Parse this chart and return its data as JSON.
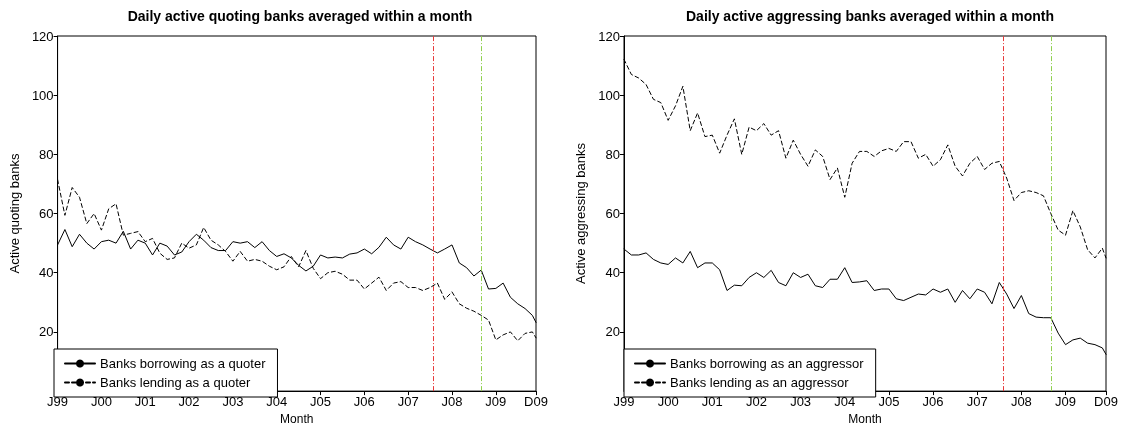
{
  "chart_data": [
    {
      "type": "line",
      "title": "Daily active quoting banks averaged within a month",
      "xlabel": "Month",
      "ylabel": "Active quoting banks",
      "x": [
        "1999-01",
        "1999-03",
        "1999-05",
        "1999-07",
        "1999-09",
        "1999-11",
        "2000-01",
        "2000-03",
        "2000-05",
        "2000-07",
        "2000-09",
        "2000-11",
        "2001-01",
        "2001-03",
        "2001-05",
        "2001-07",
        "2001-09",
        "2001-11",
        "2002-01",
        "2002-03",
        "2002-05",
        "2002-07",
        "2002-09",
        "2002-11",
        "2003-01",
        "2003-03",
        "2003-05",
        "2003-07",
        "2003-09",
        "2003-11",
        "2004-01",
        "2004-03",
        "2004-05",
        "2004-07",
        "2004-09",
        "2004-11",
        "2005-01",
        "2005-03",
        "2005-05",
        "2005-07",
        "2005-09",
        "2005-11",
        "2006-01",
        "2006-03",
        "2006-05",
        "2006-07",
        "2006-09",
        "2006-11",
        "2007-01",
        "2007-03",
        "2007-05",
        "2007-07",
        "2007-09",
        "2007-11",
        "2008-01",
        "2008-03",
        "2008-05",
        "2008-07",
        "2008-09",
        "2008-11",
        "2009-01",
        "2009-03",
        "2009-05",
        "2009-07",
        "2009-09",
        "2009-11",
        "2009-12"
      ],
      "series": [
        {
          "name": "Banks borrowing as a quoter",
          "color": "#000000",
          "line_style": "solid",
          "values": [
            49.4,
            54.6,
            48.8,
            53,
            50,
            48,
            50.5,
            51,
            50,
            54,
            48,
            51,
            50,
            46,
            50,
            49,
            46,
            47,
            50.5,
            53,
            51,
            48.5,
            47.5,
            47.5,
            50.5,
            50,
            50.5,
            48.5,
            50.5,
            47.5,
            45.5,
            46.4,
            45,
            42.5,
            40.6,
            42.2,
            46,
            45,
            45.3,
            45,
            46.3,
            46.7,
            48,
            46.4,
            48.6,
            52,
            49.4,
            48,
            52,
            50.5,
            49.4,
            48,
            46.7,
            48,
            49.4,
            43.3,
            41.7,
            38.9,
            40.9,
            34.5,
            34.7,
            36.5,
            31.7,
            29.5,
            27.9,
            25.6,
            23.2
          ]
        },
        {
          "name": "Banks lending as a quoter",
          "color": "#000000",
          "line_style": "dashed",
          "values": [
            71.5,
            59.4,
            68.8,
            65.5,
            56.6,
            60,
            54.4,
            61.6,
            63.3,
            52.7,
            53.3,
            53.9,
            50.5,
            51.6,
            46.6,
            44.5,
            45,
            50,
            48.3,
            49.4,
            55.3,
            51,
            49.4,
            47.2,
            43.9,
            47.2,
            43.9,
            44.5,
            43.9,
            42.2,
            41,
            42,
            45.5,
            42,
            47.5,
            41.5,
            38,
            40,
            40.5,
            39.5,
            37.5,
            37.5,
            34.5,
            36.5,
            38.5,
            34,
            36.5,
            37,
            35,
            35,
            34,
            35,
            36.5,
            31,
            33.5,
            29.5,
            28,
            27,
            25.6,
            24,
            17.3,
            19,
            20,
            17,
            19.5,
            20,
            18
          ]
        }
      ],
      "xlim": [
        "1999-01",
        "2009-12"
      ],
      "xticks": [
        {
          "value": "1999-01",
          "label": "J99"
        },
        {
          "value": "2000-01",
          "label": "J00"
        },
        {
          "value": "2001-01",
          "label": "J01"
        },
        {
          "value": "2002-01",
          "label": "J02"
        },
        {
          "value": "2003-01",
          "label": "J03"
        },
        {
          "value": "2004-01",
          "label": "J04"
        },
        {
          "value": "2005-01",
          "label": "J05"
        },
        {
          "value": "2006-01",
          "label": "J06"
        },
        {
          "value": "2007-01",
          "label": "J07"
        },
        {
          "value": "2008-01",
          "label": "J08"
        },
        {
          "value": "2009-01",
          "label": "J09"
        },
        {
          "value": "2009-12",
          "label": "D09"
        }
      ],
      "ylim": [
        0,
        120
      ],
      "yticks": [
        20,
        40,
        60,
        80,
        100,
        120
      ],
      "ref_lines": [
        {
          "axis": "x",
          "value": "2007-08",
          "color": "#e8393a",
          "line_style": "dashed"
        },
        {
          "axis": "x",
          "value": "2008-09",
          "color": "#8fd14f",
          "line_style": "dashed"
        }
      ],
      "grid": false,
      "legend": "bottom left",
      "marker": "none"
    },
    {
      "type": "line",
      "title": "Daily active aggressing banks averaged within a month",
      "xlabel": "Month",
      "ylabel": "Active aggressing banks",
      "x": [
        "1999-01",
        "1999-03",
        "1999-05",
        "1999-07",
        "1999-09",
        "1999-11",
        "2000-01",
        "2000-03",
        "2000-05",
        "2000-07",
        "2000-09",
        "2000-11",
        "2001-01",
        "2001-03",
        "2001-05",
        "2001-07",
        "2001-09",
        "2001-11",
        "2002-01",
        "2002-03",
        "2002-05",
        "2002-07",
        "2002-09",
        "2002-11",
        "2003-01",
        "2003-03",
        "2003-05",
        "2003-07",
        "2003-09",
        "2003-11",
        "2004-01",
        "2004-03",
        "2004-05",
        "2004-07",
        "2004-09",
        "2004-11",
        "2005-01",
        "2005-03",
        "2005-05",
        "2005-07",
        "2005-09",
        "2005-11",
        "2006-01",
        "2006-03",
        "2006-05",
        "2006-07",
        "2006-09",
        "2006-11",
        "2007-01",
        "2007-03",
        "2007-05",
        "2007-07",
        "2007-09",
        "2007-11",
        "2008-01",
        "2008-03",
        "2008-05",
        "2008-07",
        "2008-09",
        "2008-11",
        "2009-01",
        "2009-03",
        "2009-05",
        "2009-07",
        "2009-09",
        "2009-11",
        "2009-12"
      ],
      "series": [
        {
          "name": "Banks borrowing as an aggressor",
          "color": "#000000",
          "line_style": "solid",
          "values": [
            48,
            46,
            46,
            46.7,
            44.5,
            43.3,
            42.8,
            45,
            43.3,
            47.2,
            41.7,
            43.3,
            43.3,
            41,
            34,
            35.8,
            35.6,
            38.4,
            40,
            38.4,
            40.8,
            36.7,
            35.6,
            40,
            38.4,
            39.5,
            35.6,
            35,
            37.8,
            37.8,
            41.7,
            36.7,
            36.9,
            37.3,
            34,
            34.5,
            34.5,
            31.2,
            30.6,
            31.7,
            32.8,
            32.5,
            34.5,
            33.4,
            34.5,
            30,
            34,
            31.2,
            34.5,
            33.4,
            29.5,
            36.7,
            32.8,
            27.9,
            32.3,
            26.2,
            25,
            24.8,
            24.8,
            19.6,
            15.7,
            17.3,
            17.9,
            16.2,
            15.7,
            14.6,
            12.4
          ]
        },
        {
          "name": "Banks lending as an aggressor",
          "color": "#000000",
          "line_style": "dashed",
          "values": [
            112.1,
            107,
            105.8,
            103.6,
            98.6,
            97.5,
            91.5,
            96.4,
            103,
            88,
            94,
            86,
            86.5,
            80.4,
            86.5,
            92,
            80,
            89.2,
            88,
            90.4,
            86.5,
            88,
            78.7,
            84.8,
            80,
            76,
            81.5,
            79.3,
            71.5,
            75.4,
            65.5,
            77,
            81,
            81,
            79.3,
            81.2,
            82,
            81,
            84.3,
            84.3,
            78.7,
            80,
            76,
            78.2,
            83.2,
            76,
            72.7,
            77,
            79.3,
            74.9,
            77,
            77.6,
            72,
            64.4,
            67.1,
            67.7,
            67.1,
            66,
            60,
            54.4,
            52.7,
            61,
            55.5,
            47.8,
            45,
            48.3,
            45
          ]
        }
      ],
      "xlim": [
        "1999-01",
        "2009-12"
      ],
      "xticks": [
        {
          "value": "1999-01",
          "label": "J99"
        },
        {
          "value": "2000-01",
          "label": "J00"
        },
        {
          "value": "2001-01",
          "label": "J01"
        },
        {
          "value": "2002-01",
          "label": "J02"
        },
        {
          "value": "2003-01",
          "label": "J03"
        },
        {
          "value": "2004-01",
          "label": "J04"
        },
        {
          "value": "2005-01",
          "label": "J05"
        },
        {
          "value": "2006-01",
          "label": "J06"
        },
        {
          "value": "2007-01",
          "label": "J07"
        },
        {
          "value": "2008-01",
          "label": "J08"
        },
        {
          "value": "2009-01",
          "label": "J09"
        },
        {
          "value": "2009-12",
          "label": "D09"
        }
      ],
      "ylim": [
        0,
        120
      ],
      "yticks": [
        20,
        40,
        60,
        80,
        100,
        120
      ],
      "ref_lines": [
        {
          "axis": "x",
          "value": "2007-08",
          "color": "#e8393a",
          "line_style": "dashed"
        },
        {
          "axis": "x",
          "value": "2008-09",
          "color": "#8fd14f",
          "line_style": "dashed"
        }
      ],
      "grid": false,
      "legend": "bottom left",
      "marker": "none"
    }
  ]
}
